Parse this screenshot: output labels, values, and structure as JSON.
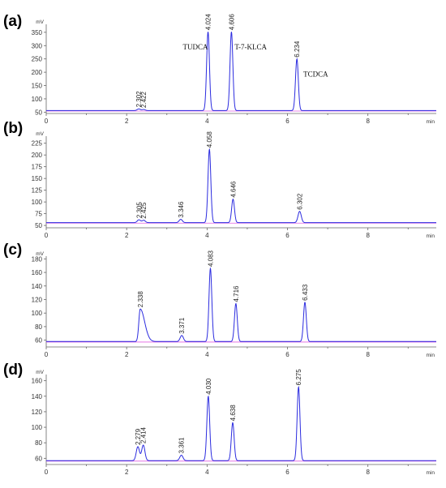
{
  "chart_data": [
    {
      "type": "line",
      "panel_label": "(a)",
      "y_unit": "mV",
      "x_unit": "min",
      "xlim": [
        0,
        9.7
      ],
      "ylim": [
        45,
        380
      ],
      "x_ticks": [
        0,
        2,
        4,
        6,
        8
      ],
      "y_ticks": [
        50,
        100,
        150,
        200,
        250,
        300,
        350
      ],
      "baseline": 56,
      "peaks": [
        {
          "rt": 2.302,
          "height": 62,
          "label": "2.302"
        },
        {
          "rt": 2.422,
          "height": 60,
          "label": "2.422"
        },
        {
          "rt": 4.024,
          "height": 352,
          "label": "4.024",
          "name": "TUDCA"
        },
        {
          "rt": 4.606,
          "height": 352,
          "label": "4.606",
          "name": "T-7-KLCA"
        },
        {
          "rt": 6.234,
          "height": 250,
          "label": "6.234",
          "name": "TCDCA"
        }
      ]
    },
    {
      "type": "line",
      "panel_label": "(b)",
      "y_unit": "mV",
      "x_unit": "min",
      "xlim": [
        0,
        9.7
      ],
      "ylim": [
        45,
        240
      ],
      "x_ticks": [
        0,
        2,
        4,
        6,
        8
      ],
      "y_ticks": [
        50,
        75,
        100,
        125,
        150,
        175,
        200,
        225
      ],
      "baseline": 56,
      "peaks": [
        {
          "rt": 2.305,
          "height": 62,
          "label": "2.305"
        },
        {
          "rt": 2.425,
          "height": 61,
          "label": "2.425"
        },
        {
          "rt": 3.346,
          "height": 63,
          "label": "3.346"
        },
        {
          "rt": 4.058,
          "height": 212,
          "label": "4.058"
        },
        {
          "rt": 4.646,
          "height": 106,
          "label": "4.646"
        },
        {
          "rt": 6.302,
          "height": 80,
          "label": "6.302"
        }
      ]
    },
    {
      "type": "line",
      "panel_label": "(c)",
      "y_unit": "mV",
      "x_unit": "min",
      "xlim": [
        0,
        9.7
      ],
      "ylim": [
        50,
        184
      ],
      "x_ticks": [
        0,
        2,
        4,
        6,
        8
      ],
      "y_ticks": [
        60,
        80,
        100,
        120,
        140,
        160,
        180
      ],
      "baseline": 58,
      "peaks": [
        {
          "rt": 2.338,
          "height": 106,
          "label": "2.338"
        },
        {
          "rt": 3.371,
          "height": 67,
          "label": "3.371"
        },
        {
          "rt": 4.083,
          "height": 166,
          "label": "4.083"
        },
        {
          "rt": 4.716,
          "height": 114,
          "label": "4.716"
        },
        {
          "rt": 6.433,
          "height": 116,
          "label": "6.433"
        }
      ]
    },
    {
      "type": "line",
      "panel_label": "(d)",
      "y_unit": "mV",
      "x_unit": "min",
      "xlim": [
        0,
        9.7
      ],
      "ylim": [
        52,
        168
      ],
      "x_ticks": [
        0,
        2,
        4,
        6,
        8
      ],
      "y_ticks": [
        60,
        80,
        100,
        120,
        140,
        160
      ],
      "baseline": 57,
      "peaks": [
        {
          "rt": 2.279,
          "height": 75,
          "label": "2.279"
        },
        {
          "rt": 2.414,
          "height": 77,
          "label": "2.414"
        },
        {
          "rt": 3.361,
          "height": 64,
          "label": "3.361"
        },
        {
          "rt": 4.03,
          "height": 140,
          "label": "4.030"
        },
        {
          "rt": 4.638,
          "height": 106,
          "label": "4.638"
        },
        {
          "rt": 6.275,
          "height": 152,
          "label": "6.275"
        }
      ]
    }
  ]
}
